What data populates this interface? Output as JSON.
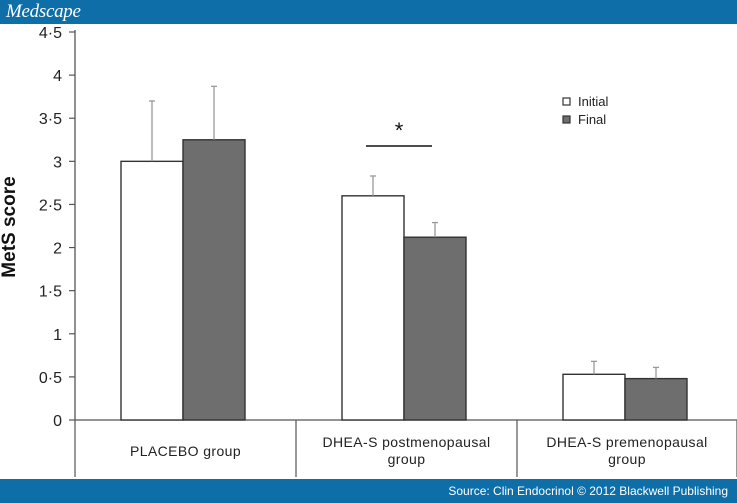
{
  "header": {
    "brand": "Medscape"
  },
  "footer": {
    "source": "Source: Clin Endocrinol © 2012 Blackwell Publishing"
  },
  "colors": {
    "initial_fill": "#ffffff",
    "final_fill": "#6e6e6e",
    "bar_stroke": "#333333",
    "banner": "#0d6ea8"
  },
  "chart_data": {
    "type": "bar",
    "title": "",
    "ylabel": "MetS score",
    "xlabel": "",
    "ylim": [
      0,
      4.5
    ],
    "yticks": [
      "0",
      "0·5",
      "1",
      "1·5",
      "2",
      "2·5",
      "3",
      "3·5",
      "4",
      "4·5"
    ],
    "categories": [
      [
        "PLACEBO group"
      ],
      [
        "DHEA-S postmenopausal",
        "group"
      ],
      [
        "DHEA-S premenopausal",
        "group"
      ]
    ],
    "series": [
      {
        "name": "Initial",
        "values": [
          3.0,
          2.6,
          0.53
        ],
        "error": [
          0.7,
          0.23,
          0.15
        ]
      },
      {
        "name": "Final",
        "values": [
          3.25,
          2.12,
          0.48
        ],
        "error": [
          0.62,
          0.17,
          0.13
        ]
      }
    ],
    "annotations": [
      {
        "text": "*",
        "category": 1
      }
    ],
    "legend": {
      "position": "top-right"
    },
    "grid": false
  }
}
